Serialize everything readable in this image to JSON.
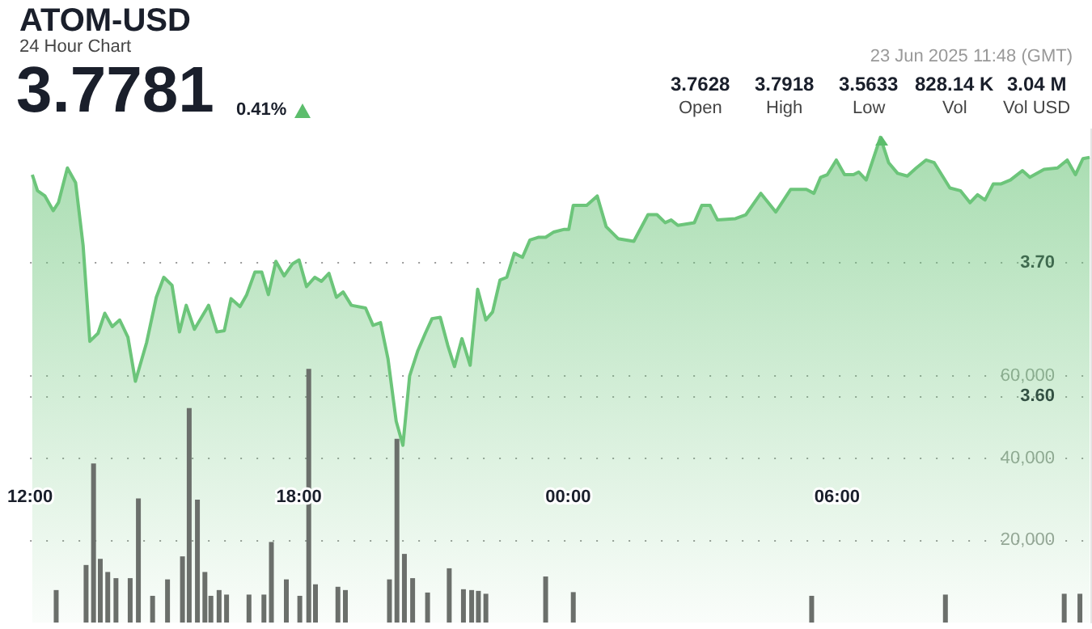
{
  "chart_data": {
    "type": "area",
    "title": "ATOM-USD",
    "subtitle": "24 Hour Chart",
    "annotations": [
      "3.7781",
      "0.41%",
      "23 Jun 2025 11:48 (GMT)",
      "3.7628",
      "Open",
      "3.7918",
      "High",
      "3.5633",
      "Low",
      "828.14 K",
      "Vol",
      "3.04 M",
      "Vol USD"
    ],
    "xlim": [
      "2025-06-22T12:00",
      "2025-06-23T11:39"
    ],
    "xticks": [
      {
        "value": "2025-06-22T12:00",
        "label": "12:00"
      },
      {
        "value": "2025-06-22T18:00",
        "label": "18:00"
      },
      {
        "value": "2025-06-23T00:00",
        "label": "00:00"
      },
      {
        "value": "2025-06-23T06:00",
        "label": "06:00"
      }
    ],
    "ylim": [
      3.43,
      3.8
    ],
    "yticks": [
      {
        "value": 3.6,
        "label": "3.60"
      },
      {
        "value": 3.7,
        "label": "3.70"
      }
    ],
    "y2lim": [
      0,
      120000
    ],
    "y2ticks": [
      {
        "value": 20000,
        "label": "20,000"
      },
      {
        "value": 40000,
        "label": "40,000"
      },
      {
        "value": 60000,
        "label": "60,000"
      }
    ],
    "grid": "y",
    "marker": "none",
    "series": [
      {
        "color": "#6cc57a",
        "x": [
          "2025-06-22T12:03",
          "2025-06-22T12:10",
          "2025-06-22T12:20",
          "2025-06-22T12:31",
          "2025-06-22T12:38",
          "2025-06-22T12:50",
          "2025-06-22T13:01",
          "2025-06-22T13:11",
          "2025-06-22T13:20",
          "2025-06-22T13:31",
          "2025-06-22T13:40",
          "2025-06-22T13:50",
          "2025-06-22T14:00",
          "2025-06-22T14:11",
          "2025-06-22T14:21",
          "2025-06-22T14:36",
          "2025-06-22T14:49",
          "2025-06-22T14:59",
          "2025-06-22T15:10",
          "2025-06-22T15:20",
          "2025-06-22T15:29",
          "2025-06-22T15:40",
          "2025-06-22T15:59",
          "2025-06-22T16:10",
          "2025-06-22T16:20",
          "2025-06-22T16:29",
          "2025-06-22T16:41",
          "2025-06-22T16:50",
          "2025-06-22T17:01",
          "2025-06-22T17:10",
          "2025-06-22T17:19",
          "2025-06-22T17:29",
          "2025-06-22T17:40",
          "2025-06-22T17:51",
          "2025-06-22T18:00",
          "2025-06-22T18:10",
          "2025-06-22T18:21",
          "2025-06-22T18:30",
          "2025-06-22T18:40",
          "2025-06-22T18:50",
          "2025-06-22T18:59",
          "2025-06-22T19:10",
          "2025-06-22T19:29",
          "2025-06-22T19:39",
          "2025-06-22T19:49",
          "2025-06-22T19:59",
          "2025-06-22T20:10",
          "2025-06-22T20:19",
          "2025-06-22T20:28",
          "2025-06-22T20:39",
          "2025-06-22T20:49",
          "2025-06-22T20:58",
          "2025-06-22T21:09",
          "2025-06-22T21:19",
          "2025-06-22T21:28",
          "2025-06-22T21:38",
          "2025-06-22T21:49",
          "2025-06-22T21:59",
          "2025-06-22T22:10",
          "2025-06-22T22:19",
          "2025-06-22T22:29",
          "2025-06-22T22:38",
          "2025-06-22T22:48",
          "2025-06-22T22:59",
          "2025-06-22T23:09",
          "2025-06-22T23:20",
          "2025-06-22T23:30",
          "2025-06-22T23:41",
          "2025-06-22T23:55",
          "2025-06-23T00:01",
          "2025-06-23T00:07",
          "2025-06-23T00:25",
          "2025-06-23T00:39",
          "2025-06-23T00:51",
          "2025-06-23T01:07",
          "2025-06-23T01:28",
          "2025-06-23T01:47",
          "2025-06-23T01:59",
          "2025-06-23T02:10",
          "2025-06-23T02:18",
          "2025-06-23T02:27",
          "2025-06-23T02:49",
          "2025-06-23T02:59",
          "2025-06-23T03:10",
          "2025-06-23T03:20",
          "2025-06-23T03:44",
          "2025-06-23T03:58",
          "2025-06-23T04:18",
          "2025-06-23T04:38",
          "2025-06-23T04:58",
          "2025-06-23T05:19",
          "2025-06-23T05:29",
          "2025-06-23T05:38",
          "2025-06-23T05:47",
          "2025-06-23T05:59",
          "2025-06-23T06:10",
          "2025-06-23T06:22",
          "2025-06-23T06:29",
          "2025-06-23T06:39",
          "2025-06-23T06:58",
          "2025-06-23T07:09",
          "2025-06-23T07:21",
          "2025-06-23T07:34",
          "2025-06-23T07:46",
          "2025-06-23T07:59",
          "2025-06-23T08:10",
          "2025-06-23T08:31",
          "2025-06-23T08:45",
          "2025-06-23T08:58",
          "2025-06-23T09:08",
          "2025-06-23T09:18",
          "2025-06-23T09:29",
          "2025-06-23T09:39",
          "2025-06-23T09:52",
          "2025-06-23T10:08",
          "2025-06-23T10:18",
          "2025-06-23T10:37",
          "2025-06-23T10:55",
          "2025-06-23T11:08",
          "2025-06-23T11:19",
          "2025-06-23T11:29",
          "2025-06-23T11:38"
        ],
        "values": [
          3.766,
          3.754,
          3.75,
          3.739,
          3.745,
          3.771,
          3.76,
          3.713,
          3.641,
          3.647,
          3.662,
          3.652,
          3.657,
          3.644,
          3.611,
          3.64,
          3.674,
          3.689,
          3.683,
          3.648,
          3.668,
          3.65,
          3.668,
          3.648,
          3.649,
          3.673,
          3.667,
          3.676,
          3.693,
          3.693,
          3.676,
          3.701,
          3.69,
          3.699,
          3.702,
          3.682,
          3.689,
          3.686,
          3.692,
          3.674,
          3.678,
          3.668,
          3.666,
          3.653,
          3.655,
          3.628,
          3.581,
          3.563,
          3.615,
          3.634,
          3.647,
          3.658,
          3.659,
          3.638,
          3.622,
          3.643,
          3.623,
          3.68,
          3.657,
          3.663,
          3.687,
          3.689,
          3.707,
          3.704,
          3.717,
          3.719,
          3.719,
          3.723,
          3.725,
          3.725,
          3.743,
          3.743,
          3.75,
          3.727,
          3.718,
          3.716,
          3.736,
          3.736,
          3.73,
          3.732,
          3.728,
          3.73,
          3.743,
          3.743,
          3.732,
          3.733,
          3.736,
          3.752,
          3.738,
          3.755,
          3.755,
          3.752,
          3.764,
          3.766,
          3.777,
          3.766,
          3.766,
          3.768,
          3.762,
          3.794,
          3.775,
          3.767,
          3.765,
          3.771,
          3.777,
          3.775,
          3.756,
          3.754,
          3.745,
          3.751,
          3.747,
          3.759,
          3.759,
          3.762,
          3.769,
          3.764,
          3.77,
          3.771,
          3.777,
          3.766,
          3.778,
          3.779
        ]
      },
      {
        "type": "bar",
        "axis": "y2",
        "color": "#6b6f6b",
        "x": [
          "2025-06-22T12:35",
          "2025-06-22T13:15",
          "2025-06-22T13:25",
          "2025-06-22T13:34",
          "2025-06-22T13:44",
          "2025-06-22T13:55",
          "2025-06-22T14:14",
          "2025-06-22T14:25",
          "2025-06-22T14:44",
          "2025-06-22T15:04",
          "2025-06-22T15:24",
          "2025-06-22T15:33",
          "2025-06-22T15:44",
          "2025-06-22T15:54",
          "2025-06-22T16:02",
          "2025-06-22T16:13",
          "2025-06-22T16:23",
          "2025-06-22T16:53",
          "2025-06-22T17:13",
          "2025-06-22T17:23",
          "2025-06-22T17:43",
          "2025-06-22T18:01",
          "2025-06-22T18:13",
          "2025-06-22T18:22",
          "2025-06-22T18:52",
          "2025-06-22T19:02",
          "2025-06-22T20:01",
          "2025-06-22T20:11",
          "2025-06-22T20:21",
          "2025-06-22T20:32",
          "2025-06-22T20:52",
          "2025-06-22T21:21",
          "2025-06-22T21:40",
          "2025-06-22T21:51",
          "2025-06-22T22:00",
          "2025-06-22T22:10",
          "2025-06-22T23:30",
          "2025-06-23T00:07",
          "2025-06-23T05:26",
          "2025-06-23T08:25",
          "2025-06-23T11:04",
          "2025-06-23T11:25"
        ],
        "values": [
          7900,
          14000,
          38700,
          15500,
          12300,
          10800,
          10800,
          30200,
          6500,
          10500,
          16100,
          52200,
          29900,
          12300,
          6500,
          7900,
          6800,
          6800,
          6800,
          19600,
          10500,
          6500,
          61700,
          9300,
          8700,
          7900,
          10500,
          44700,
          16700,
          10800,
          7300,
          13200,
          8100,
          7900,
          7700,
          7000,
          11200,
          7400,
          6500,
          6800,
          7000,
          7000
        ]
      }
    ]
  }
}
